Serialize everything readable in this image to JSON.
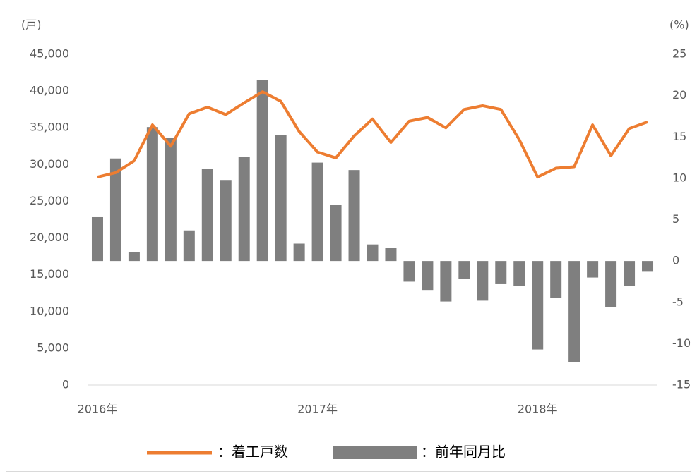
{
  "chart_data": {
    "type": "bar-line",
    "ylabel": "(戸)",
    "y2label": "(%)",
    "categories": [
      "2016年",
      null,
      null,
      null,
      null,
      null,
      null,
      null,
      null,
      null,
      null,
      null,
      "2017年",
      null,
      null,
      null,
      null,
      null,
      null,
      null,
      null,
      null,
      null,
      null,
      "2018年",
      null,
      null,
      null,
      null,
      null,
      null
    ],
    "series": [
      {
        "name": "：着工戸数",
        "type": "line",
        "color": "#ed7d31",
        "axis": "y",
        "values": [
          28300,
          28900,
          30500,
          35400,
          32500,
          36900,
          37800,
          36800,
          38400,
          39900,
          38600,
          34500,
          31700,
          30900,
          33900,
          36200,
          33000,
          35900,
          36400,
          35000,
          37500,
          38000,
          37500,
          33400,
          28300,
          29500,
          29700,
          35400,
          31200,
          34900,
          35800
        ]
      },
      {
        "name": "：前年同月比",
        "type": "bar",
        "color": "#7f7f7f",
        "axis": "y2",
        "values": [
          5.3,
          12.4,
          1.1,
          16.2,
          14.9,
          3.7,
          11.1,
          9.8,
          12.6,
          21.9,
          15.2,
          2.1,
          11.9,
          6.8,
          11.0,
          2.0,
          1.6,
          -2.5,
          -3.5,
          -4.9,
          -2.2,
          -4.8,
          -2.8,
          -3.0,
          -10.7,
          -4.5,
          -12.2,
          -2.0,
          -5.6,
          -3.0,
          -1.3
        ]
      }
    ],
    "ylim": [
      0,
      45000
    ],
    "yticks": [
      0,
      {
        "value": 5000,
        "label": "5,000"
      },
      {
        "value": 10000,
        "label": "10,000"
      },
      {
        "value": 15000,
        "label": "15,000"
      },
      {
        "value": 20000,
        "label": "20,000"
      },
      {
        "value": 25000,
        "label": "25,000"
      },
      {
        "value": 30000,
        "label": "30,000"
      },
      {
        "value": 35000,
        "label": "35,000"
      },
      {
        "value": 40000,
        "label": "40,000"
      },
      {
        "value": 45000,
        "label": "45,000"
      }
    ],
    "y2lim": [
      -15,
      25
    ],
    "y2ticks": [
      -15,
      -10,
      -5,
      0,
      5,
      10,
      15,
      20,
      25
    ],
    "y2tick_negative_color": "#ff0000",
    "grid": false
  }
}
